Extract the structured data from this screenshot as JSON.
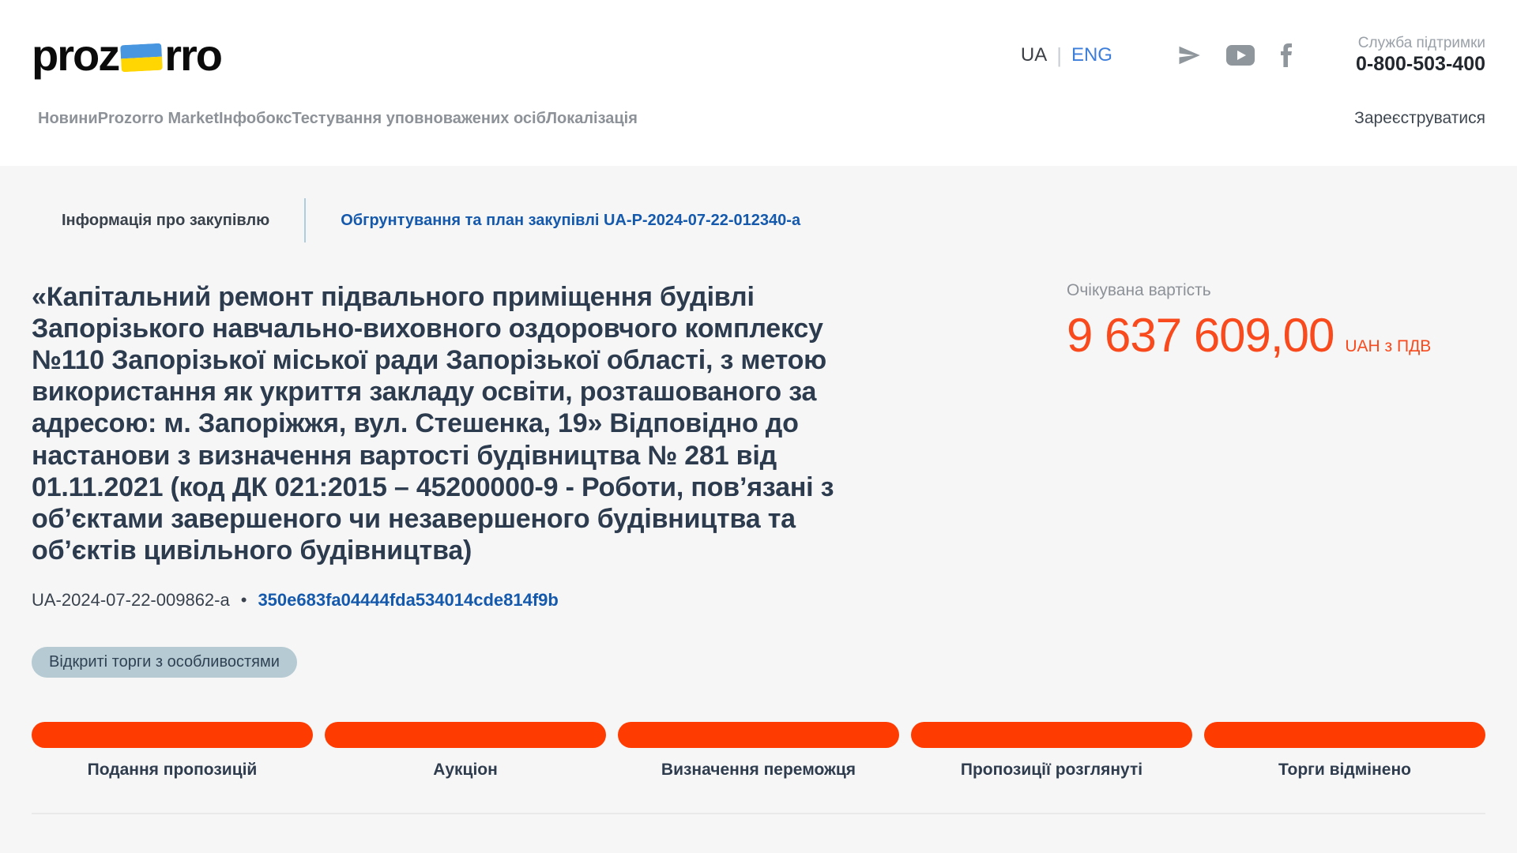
{
  "brand": {
    "logo_pre": "proz",
    "logo_post": "rro",
    "flag_top_color": "#4896e0",
    "flag_bottom_color": "#ffd502"
  },
  "header": {
    "lang": {
      "ua": "UA",
      "eng": "ENG",
      "separator": "|"
    },
    "social_icons": [
      "telegram-icon",
      "youtube-icon",
      "facebook-icon"
    ],
    "support": {
      "label": "Служба підтримки",
      "phone": "0-800-503-400"
    },
    "nav": [
      "Новини",
      "Prozorro Market",
      "Інфобокс",
      "Тестування уповноважених осіб",
      "Локалізація"
    ],
    "register_label": "Зареєструватися"
  },
  "tabs": {
    "info": "Інформація про закупівлю",
    "plan": "Обгрунтування та план закупівлі UA-P-2024-07-22-012340-a"
  },
  "tender": {
    "title": "«Капітальний ремонт підвального приміщення будівлі Запорізького навчально-виховного оздоровчого комплексу №110 Запорізької міської ради Запорізької області, з метою використання як укриття закладу освіти, розташованого за адресою: м. Запоріжжя, вул. Стешенка, 19» Відповідно до настанови з визначення вартості будівництва № 281 від 01.11.2021 (код ДК 021:2015 – 45200000-9 - Роботи, пов’язані з об’єктами завершеного чи незавершеного будівництва та об’єктів цивільного будівництва)",
    "id": "UA-2024-07-22-009862-a",
    "separator": "•",
    "hash": "350e683fa04444fda534014cde814f9b",
    "badge": "Відкриті торги з особливостями"
  },
  "expected_value": {
    "label": "Очікувана вартість",
    "amount": "9 637 609,00",
    "currency": "UAH з ПДВ"
  },
  "stages": [
    "Подання пропозицій",
    "Аукціон",
    "Визначення переможця",
    "Пропозиції розглянуті",
    "Торги відмінено"
  ],
  "colors": {
    "accent_orange": "#fe3c02",
    "price_orange": "#f84a1d",
    "link_blue": "#1459ac",
    "lang_blue": "#3d7edb",
    "badge_bg": "#b5cad2",
    "title_dark": "#2d3b4e",
    "page_bg": "#f6f6f6"
  }
}
